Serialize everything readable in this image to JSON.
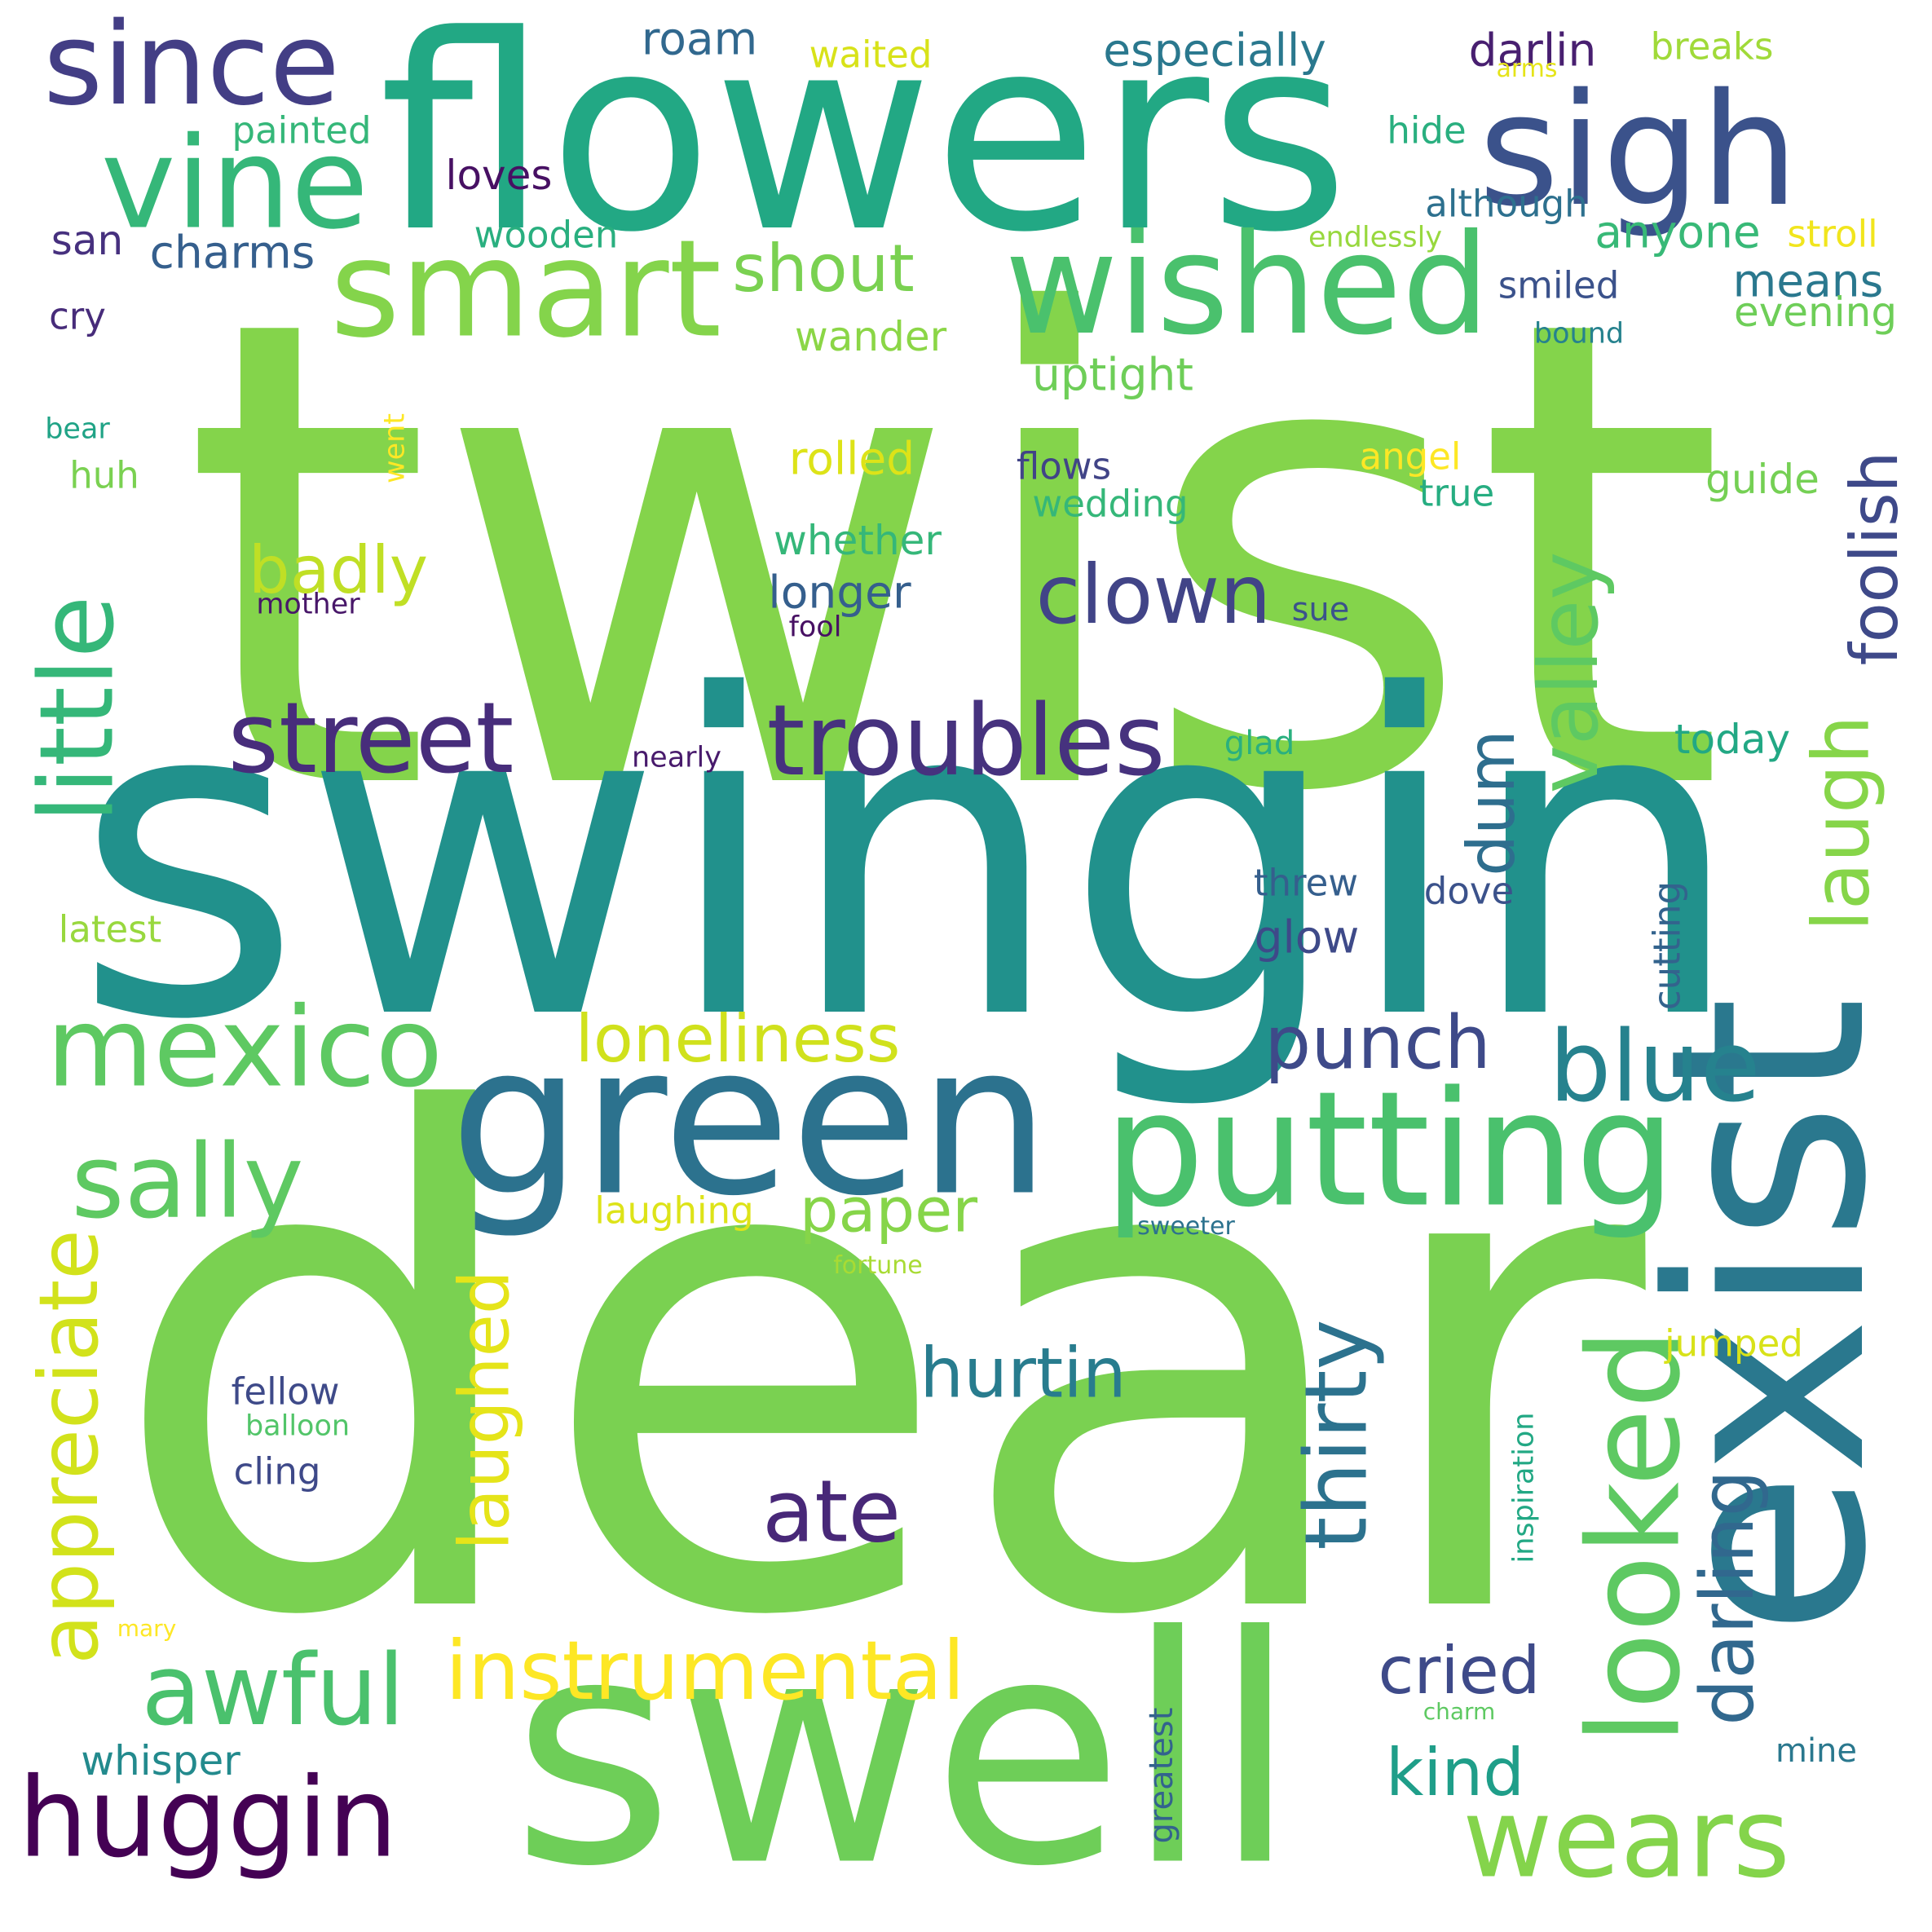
{
  "words": [
    {
      "text": "twist",
      "color": "#84d44b"
    },
    {
      "text": "swingin",
      "color": "#21918c"
    },
    {
      "text": "dear",
      "color": "#7ad151"
    },
    {
      "text": "flowers",
      "color": "#22a884"
    },
    {
      "text": "swell",
      "color": "#6ece58"
    },
    {
      "text": "exist",
      "color": "#2a788e"
    },
    {
      "text": "green",
      "color": "#2c728e"
    },
    {
      "text": "putting",
      "color": "#4ac16d"
    },
    {
      "text": "sigh",
      "color": "#3b528b"
    },
    {
      "text": "wished",
      "color": "#4ac16d"
    },
    {
      "text": "smart",
      "color": "#84d44b"
    },
    {
      "text": "vine",
      "color": "#35b779"
    },
    {
      "text": "since",
      "color": "#433e85"
    },
    {
      "text": "mexico",
      "color": "#5ec962"
    },
    {
      "text": "troubles",
      "color": "#46327e"
    },
    {
      "text": "street",
      "color": "#472d7b"
    },
    {
      "text": "sally",
      "color": "#5ec962"
    },
    {
      "text": "little",
      "color": "#35b779"
    },
    {
      "text": "looked",
      "color": "#5ec962"
    },
    {
      "text": "huggin",
      "color": "#440154"
    },
    {
      "text": "wears",
      "color": "#84d44b"
    },
    {
      "text": "awful",
      "color": "#4ac16d"
    },
    {
      "text": "instrumental",
      "color": "#fde725"
    },
    {
      "text": "blue",
      "color": "#26828e"
    },
    {
      "text": "appreciate",
      "color": "#d2e21b"
    },
    {
      "text": "clown",
      "color": "#414487"
    },
    {
      "text": "ate",
      "color": "#482878"
    },
    {
      "text": "thirty",
      "color": "#2c728e"
    },
    {
      "text": "valley",
      "color": "#5ec962"
    },
    {
      "text": "laugh",
      "color": "#86d549"
    },
    {
      "text": "punch",
      "color": "#3e4a89"
    },
    {
      "text": "loneliness",
      "color": "#d0e11c"
    },
    {
      "text": "laughed",
      "color": "#e5e419"
    },
    {
      "text": "darling",
      "color": "#31688e"
    },
    {
      "text": "foolish",
      "color": "#3e4989"
    },
    {
      "text": "hurtin",
      "color": "#287c8e"
    },
    {
      "text": "paper",
      "color": "#86d549"
    },
    {
      "text": "dum",
      "color": "#2e6e8e"
    },
    {
      "text": "shout",
      "color": "#7ad151"
    },
    {
      "text": "badly",
      "color": "#c0df25"
    },
    {
      "text": "cried",
      "color": "#3e4a89"
    },
    {
      "text": "kind",
      "color": "#1f9e89"
    },
    {
      "text": "especially",
      "color": "#2a788e"
    },
    {
      "text": "roam",
      "color": "#31688e"
    },
    {
      "text": "darlin",
      "color": "#481f70"
    },
    {
      "text": "waited",
      "color": "#d8e219"
    },
    {
      "text": "breaks",
      "color": "#a0da39"
    },
    {
      "text": "painted",
      "color": "#35b779"
    },
    {
      "text": "loves",
      "color": "#471063"
    },
    {
      "text": "hide",
      "color": "#29af7f"
    },
    {
      "text": "although",
      "color": "#2d708e"
    },
    {
      "text": "anyone",
      "color": "#38b977"
    },
    {
      "text": "stroll",
      "color": "#f1e51d"
    },
    {
      "text": "endlessly",
      "color": "#98d83e"
    },
    {
      "text": "arms",
      "color": "#e5e419"
    },
    {
      "text": "san",
      "color": "#46307e"
    },
    {
      "text": "charms",
      "color": "#355f8d"
    },
    {
      "text": "wooden",
      "color": "#29af7f"
    },
    {
      "text": "cry",
      "color": "#472c7a"
    },
    {
      "text": "wander",
      "color": "#8bd646"
    },
    {
      "text": "uptight",
      "color": "#6ece58"
    },
    {
      "text": "smiled",
      "color": "#3b528b"
    },
    {
      "text": "means",
      "color": "#2a788e"
    },
    {
      "text": "evening",
      "color": "#6ece58"
    },
    {
      "text": "bound",
      "color": "#26828e"
    },
    {
      "text": "bear",
      "color": "#20a386"
    },
    {
      "text": "huh",
      "color": "#7ad151"
    },
    {
      "text": "went",
      "color": "#fde725"
    },
    {
      "text": "rolled",
      "color": "#dde318"
    },
    {
      "text": "flows",
      "color": "#414487"
    },
    {
      "text": "wedding",
      "color": "#35b779"
    },
    {
      "text": "angel",
      "color": "#fde725"
    },
    {
      "text": "true",
      "color": "#26ad81"
    },
    {
      "text": "guide",
      "color": "#75d054"
    },
    {
      "text": "whether",
      "color": "#35b779"
    },
    {
      "text": "longer",
      "color": "#355f8d"
    },
    {
      "text": "mother",
      "color": "#481769"
    },
    {
      "text": "fool",
      "color": "#471063"
    },
    {
      "text": "sue",
      "color": "#3b528b"
    },
    {
      "text": "nearly",
      "color": "#481a6c"
    },
    {
      "text": "glad",
      "color": "#2ab07f"
    },
    {
      "text": "today",
      "color": "#22a884"
    },
    {
      "text": "threw",
      "color": "#355f8d"
    },
    {
      "text": "dove",
      "color": "#3b528b"
    },
    {
      "text": "glow",
      "color": "#3e4a89"
    },
    {
      "text": "latest",
      "color": "#98d83e"
    },
    {
      "text": "cutting",
      "color": "#33638d"
    },
    {
      "text": "laughing",
      "color": "#dde318"
    },
    {
      "text": "sweeter",
      "color": "#2c728e"
    },
    {
      "text": "fortune",
      "color": "#a8db34"
    },
    {
      "text": "jumped",
      "color": "#d8e219"
    },
    {
      "text": "fellow",
      "color": "#3e4a89"
    },
    {
      "text": "balloon",
      "color": "#52c569"
    },
    {
      "text": "cling",
      "color": "#3e4989"
    },
    {
      "text": "inspiration",
      "color": "#22a884"
    },
    {
      "text": "mary",
      "color": "#fde725"
    },
    {
      "text": "charm",
      "color": "#5ec962"
    },
    {
      "text": "mine",
      "color": "#2a788e"
    },
    {
      "text": "whisper",
      "color": "#238a8d"
    },
    {
      "text": "greatest",
      "color": "#33638d"
    }
  ]
}
